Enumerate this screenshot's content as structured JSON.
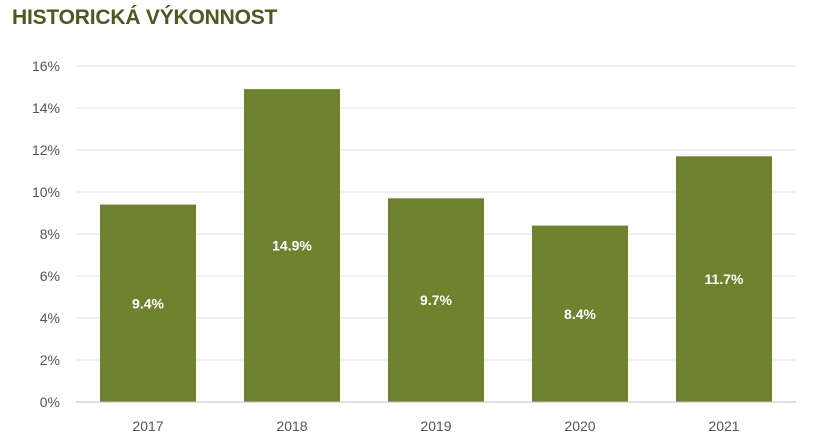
{
  "chart_data": {
    "type": "bar",
    "title": "HISTORICKÁ VÝKONNOST",
    "categories": [
      "2017",
      "2018",
      "2019",
      "2020",
      "2021"
    ],
    "values": [
      9.4,
      14.9,
      9.7,
      8.4,
      11.7
    ],
    "data_labels": [
      "9.4%",
      "14.9%",
      "9.7%",
      "8.4%",
      "11.7%"
    ],
    "y_ticks": [
      0,
      2,
      4,
      6,
      8,
      10,
      12,
      14,
      16
    ],
    "y_tick_labels": [
      "0%",
      "2%",
      "4%",
      "6%",
      "8%",
      "10%",
      "12%",
      "14%",
      "16%"
    ],
    "ylim": [
      0,
      16
    ],
    "xlabel": "",
    "ylabel": "",
    "grid": true,
    "legend": "none",
    "colors": {
      "bar": "#6e832d",
      "title": "#4b5a1e",
      "grid": "#e3e3e3",
      "axis": "#bfbfbf",
      "tick_text": "#555555",
      "data_label": "#ffffff"
    }
  }
}
